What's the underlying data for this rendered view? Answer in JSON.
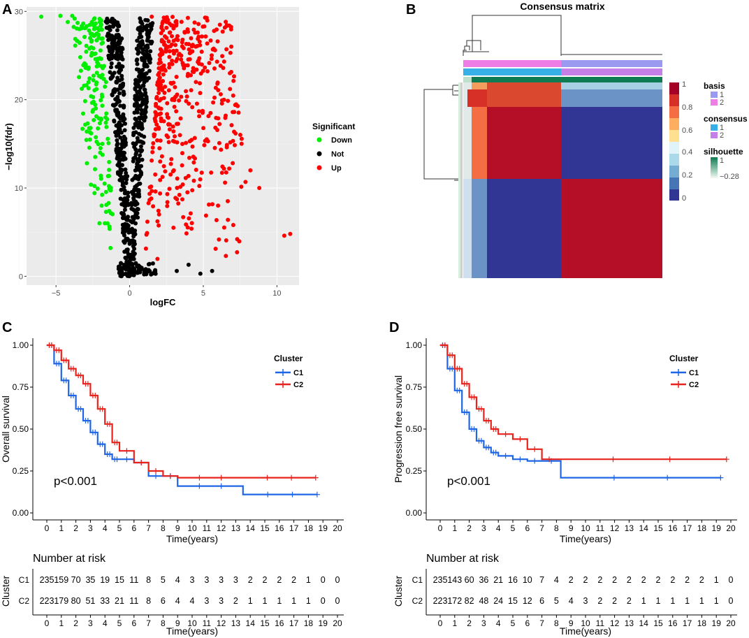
{
  "panels": {
    "A": "A",
    "B": "B",
    "C": "C",
    "D": "D"
  },
  "volcano": {
    "xlabel": "logFC",
    "ylabel": "−log10(fdr)",
    "x_ticks": [
      -5,
      0,
      5,
      10
    ],
    "x_tick_labels": [
      "−5",
      "0",
      "5",
      "10"
    ],
    "y_ticks": [
      0,
      10,
      20,
      30
    ],
    "y_tick_labels": [
      "0",
      "10",
      "20",
      "30"
    ],
    "legend_title": "Significant",
    "legend": [
      {
        "label": "Down",
        "color": "#00ee00"
      },
      {
        "label": "Not",
        "color": "#000000"
      },
      {
        "label": "Up",
        "color": "#ff0000"
      }
    ]
  },
  "heatmap": {
    "title": "Consensus matrix",
    "colorbar_ticks": [
      "1",
      "0.8",
      "0.6",
      "0.4",
      "0.2",
      "0"
    ],
    "legends": [
      {
        "title": "basis",
        "items": [
          {
            "label": "1",
            "color": "#9a9af0"
          },
          {
            "label": "2",
            "color": "#ee7ee6"
          }
        ]
      },
      {
        "title": "consensus",
        "items": [
          {
            "label": "1",
            "color": "#37b0e8"
          },
          {
            "label": "2",
            "color": "#c57fe6"
          }
        ]
      },
      {
        "title": "silhouette",
        "items": [
          {
            "label": "1",
            "color": "#0e7b52"
          },
          {
            "label": "−0.28",
            "color": "#eef7f1"
          }
        ]
      }
    ]
  },
  "chart_data": [
    {
      "type": "scatter",
      "title": "",
      "xlabel": "logFC",
      "ylabel": "-log10(fdr)",
      "xlim": [
        -7,
        11.5
      ],
      "ylim": [
        -1,
        30.5
      ],
      "series": [
        {
          "name": "Down",
          "color": "#00ee00",
          "points": [
            [
              -6.0,
              29.4
            ],
            [
              -4.7,
              29.5
            ],
            [
              -4.2,
              28.8
            ],
            [
              -3.9,
              29.5
            ],
            [
              -3.2,
              16.7
            ],
            [
              -2.9,
              12.8
            ],
            [
              -2.6,
              25.0
            ],
            [
              -2.3,
              19.0
            ],
            [
              -2.0,
              14.0
            ],
            [
              -1.7,
              10.5
            ],
            [
              -1.5,
              6.0
            ],
            [
              -1.3,
              3.2
            ],
            [
              -2.1,
              27.0
            ],
            [
              -1.6,
              22.0
            ],
            [
              -1.9,
              8.0
            ]
          ]
        },
        {
          "name": "Not",
          "color": "#000000",
          "points": [
            [
              -1.0,
              21.0
            ],
            [
              -0.8,
              17.0
            ],
            [
              -0.6,
              12.0
            ],
            [
              -0.4,
              7.0
            ],
            [
              -0.2,
              3.0
            ],
            [
              0.0,
              0.6
            ],
            [
              0.2,
              2.0
            ],
            [
              0.4,
              6.0
            ],
            [
              0.6,
              11.0
            ],
            [
              0.8,
              18.0
            ],
            [
              1.0,
              24.0
            ],
            [
              1.2,
              29.0
            ],
            [
              3.2,
              0.6
            ],
            [
              4.0,
              1.3
            ],
            [
              4.8,
              0.3
            ],
            [
              5.6,
              0.6
            ]
          ]
        },
        {
          "name": "Up",
          "color": "#ff0000",
          "points": [
            [
              1.5,
              29.4
            ],
            [
              2.5,
              27.0
            ],
            [
              3.5,
              25.0
            ],
            [
              4.5,
              22.0
            ],
            [
              5.5,
              26.7
            ],
            [
              6.4,
              20.0
            ],
            [
              7.0,
              18.6
            ],
            [
              7.6,
              15.0
            ],
            [
              8.2,
              12.0
            ],
            [
              8.8,
              10.0
            ],
            [
              10.5,
              4.6
            ],
            [
              10.9,
              4.8
            ],
            [
              7.3,
              4.2
            ],
            [
              6.0,
              8.0
            ],
            [
              3.0,
              12.0
            ],
            [
              2.0,
              7.0
            ]
          ]
        }
      ]
    },
    {
      "type": "heatmap",
      "title": "Consensus matrix",
      "clusters": [
        {
          "name": "1",
          "fraction": 0.5
        },
        {
          "name": "2",
          "fraction": 0.5
        }
      ],
      "colorbar": {
        "min": 0,
        "max": 1,
        "ticks": [
          0,
          0.2,
          0.4,
          0.6,
          0.8,
          1
        ]
      },
      "row_annotations": [
        "basis",
        "consensus",
        "silhouette"
      ]
    },
    {
      "type": "line",
      "title": "",
      "xlabel": "Time(years)",
      "ylabel": "Overall survival",
      "xlim": [
        0,
        20
      ],
      "ylim": [
        0,
        1
      ],
      "x_ticks": [
        0,
        1,
        2,
        3,
        4,
        5,
        6,
        7,
        8,
        9,
        10,
        11,
        12,
        13,
        14,
        15,
        16,
        17,
        18,
        19,
        20
      ],
      "y_ticks": [
        "0.00",
        "0.25",
        "0.50",
        "0.75",
        "1.00"
      ],
      "legend_title": "Cluster",
      "pvalue_label": "p<0.001",
      "series": [
        {
          "name": "C1",
          "color": "#1f66e6",
          "x": [
            0,
            0.5,
            1,
            1.5,
            2,
            2.5,
            3,
            3.5,
            4,
            4.5,
            5,
            6,
            7,
            8,
            9,
            13.5,
            18.6
          ],
          "y": [
            1.0,
            0.89,
            0.79,
            0.7,
            0.62,
            0.55,
            0.48,
            0.41,
            0.35,
            0.32,
            0.32,
            0.3,
            0.22,
            0.22,
            0.16,
            0.11,
            0.11
          ]
        },
        {
          "name": "C2",
          "color": "#e8231c",
          "x": [
            0,
            0.5,
            1,
            1.5,
            2,
            2.5,
            3,
            3.5,
            4,
            4.5,
            5,
            6,
            7,
            8,
            9,
            13.5,
            18.5
          ],
          "y": [
            1.0,
            0.97,
            0.91,
            0.86,
            0.82,
            0.77,
            0.7,
            0.62,
            0.53,
            0.42,
            0.37,
            0.3,
            0.25,
            0.22,
            0.21,
            0.21,
            0.21
          ]
        }
      ],
      "risk_table_title": "Number at risk",
      "risk_table_axis": "Cluster",
      "risk_table": [
        {
          "group": "C1",
          "counts": [
            "235",
            "159",
            "70",
            "35",
            "19",
            "15",
            "11",
            "8",
            "5",
            "4",
            "3",
            "3",
            "3",
            "3",
            "2",
            "2",
            "2",
            "2",
            "1",
            "0",
            "0"
          ]
        },
        {
          "group": "C2",
          "counts": [
            "223",
            "179",
            "80",
            "51",
            "33",
            "21",
            "11",
            "8",
            "6",
            "4",
            "4",
            "3",
            "3",
            "2",
            "1",
            "1",
            "1",
            "1",
            "1",
            "0",
            "0"
          ]
        }
      ]
    },
    {
      "type": "line",
      "title": "",
      "xlabel": "Time(years)",
      "ylabel": "Progression free survival",
      "xlim": [
        0,
        20
      ],
      "ylim": [
        0,
        1
      ],
      "x_ticks": [
        0,
        1,
        2,
        3,
        4,
        5,
        6,
        7,
        8,
        9,
        10,
        11,
        12,
        13,
        14,
        15,
        16,
        17,
        18,
        19,
        20
      ],
      "y_ticks": [
        "0.00",
        "0.25",
        "0.50",
        "0.75",
        "1.00"
      ],
      "legend_title": "Cluster",
      "pvalue_label": "p<0.001",
      "series": [
        {
          "name": "C1",
          "color": "#1f66e6",
          "x": [
            0,
            0.5,
            1,
            1.5,
            2,
            2.5,
            3,
            3.5,
            4,
            5,
            6,
            7,
            8.3,
            19.3
          ],
          "y": [
            1.0,
            0.86,
            0.73,
            0.6,
            0.5,
            0.43,
            0.39,
            0.36,
            0.34,
            0.32,
            0.31,
            0.31,
            0.21,
            0.21
          ]
        },
        {
          "name": "C2",
          "color": "#e8231c",
          "x": [
            0,
            0.5,
            1,
            1.5,
            2,
            2.5,
            3,
            3.5,
            4,
            5,
            6,
            7,
            8,
            19.7
          ],
          "y": [
            1.0,
            0.94,
            0.86,
            0.77,
            0.69,
            0.62,
            0.55,
            0.5,
            0.47,
            0.44,
            0.38,
            0.32,
            0.32,
            0.32
          ]
        }
      ],
      "risk_table_title": "Number at risk",
      "risk_table_axis": "Cluster",
      "risk_table": [
        {
          "group": "C1",
          "counts": [
            "235",
            "143",
            "60",
            "36",
            "21",
            "16",
            "10",
            "7",
            "4",
            "2",
            "2",
            "2",
            "2",
            "2",
            "2",
            "2",
            "2",
            "2",
            "2",
            "1",
            "0"
          ]
        },
        {
          "group": "C2",
          "counts": [
            "223",
            "172",
            "82",
            "48",
            "24",
            "15",
            "12",
            "6",
            "5",
            "4",
            "3",
            "2",
            "2",
            "2",
            "1",
            "1",
            "1",
            "1",
            "1",
            "1",
            "0"
          ]
        }
      ]
    }
  ]
}
